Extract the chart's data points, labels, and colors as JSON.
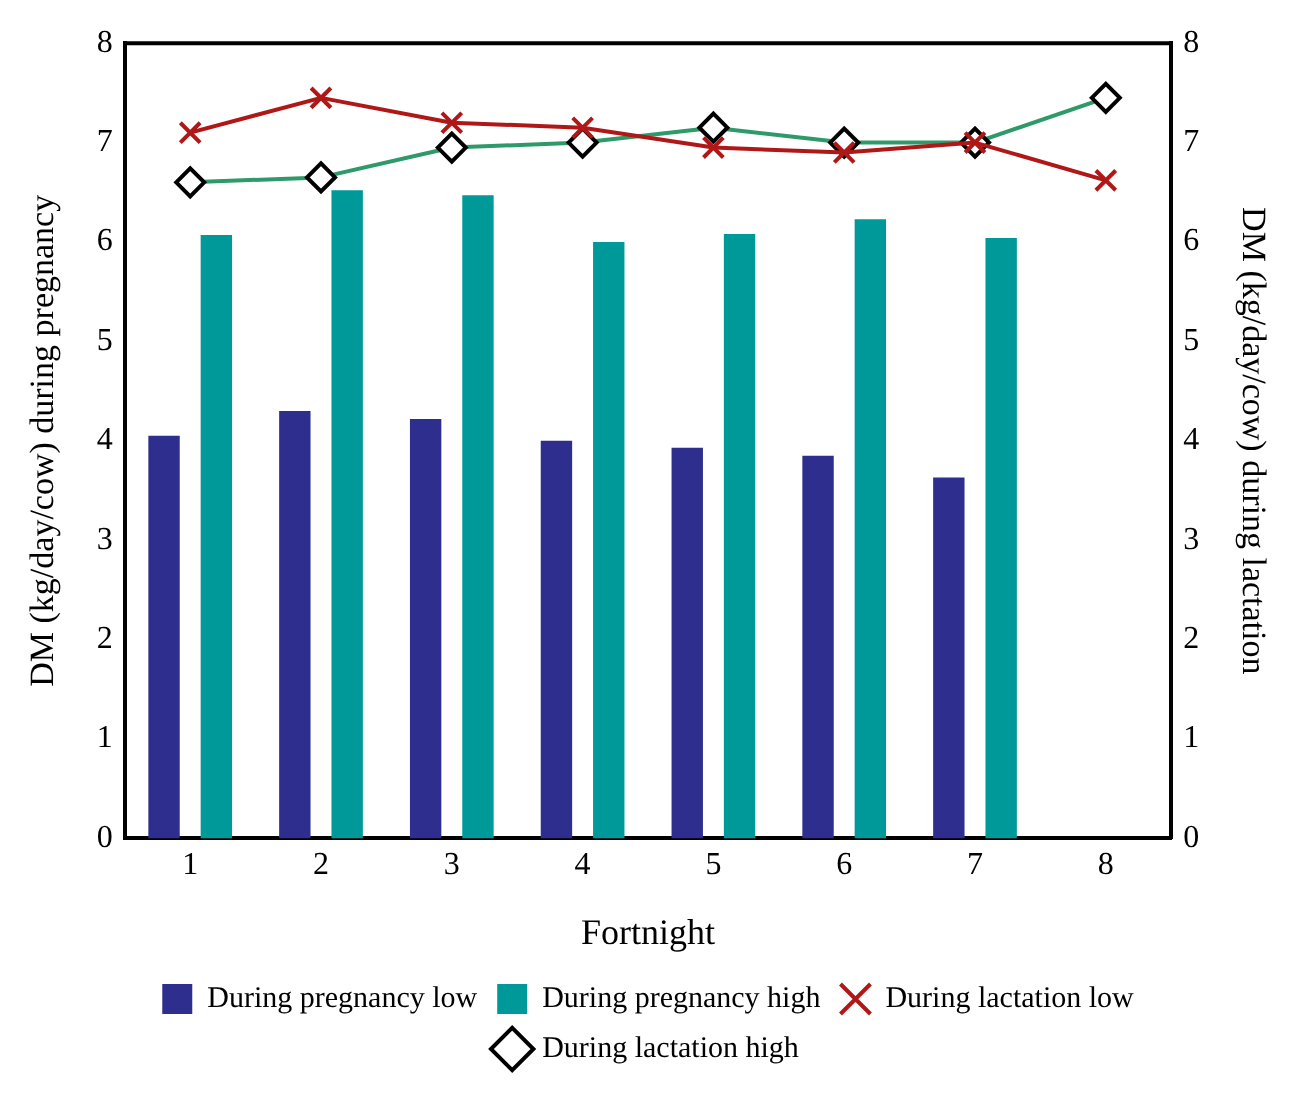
{
  "chart_data": {
    "type": "bar",
    "xlabel": "Fortnight",
    "ylabel": "DM (kg/day/cow) during pregnancy",
    "y2label": "DM (kg/day/cow) during lactation",
    "categories": [
      "1",
      "2",
      "3",
      "4",
      "5",
      "6",
      "7",
      "8"
    ],
    "series": [
      {
        "name": "During pregnancy low",
        "color": "#2e2e8f",
        "values": [
          4.05,
          4.3,
          4.22,
          4.0,
          3.93,
          3.85,
          3.63,
          null
        ]
      },
      {
        "name": "During pregnancy high",
        "color": "#009999",
        "values": [
          6.07,
          6.52,
          6.47,
          6.0,
          6.08,
          6.23,
          6.04,
          null
        ]
      },
      {
        "name": "During lactation low",
        "type": "line",
        "axis": "y2",
        "color": "#b01818",
        "marker": "cross",
        "values": [
          7.1,
          7.45,
          7.2,
          7.15,
          6.95,
          6.9,
          7.0,
          6.62
        ]
      },
      {
        "name": "During lactation high",
        "type": "line",
        "axis": "y2",
        "color": "#2e9a6a",
        "marker": "diamond",
        "values": [
          6.6,
          6.65,
          6.95,
          7.0,
          7.15,
          7.0,
          7.0,
          7.45
        ]
      }
    ],
    "ylim": [
      0,
      8
    ],
    "yticks": [
      0,
      1,
      2,
      3,
      4,
      5,
      6,
      7,
      8
    ],
    "y2lim": [
      0,
      8
    ],
    "y2ticks": [
      0,
      1,
      2,
      3,
      4,
      5,
      6,
      7,
      8
    ],
    "legend": "bottom",
    "grid": false
  }
}
